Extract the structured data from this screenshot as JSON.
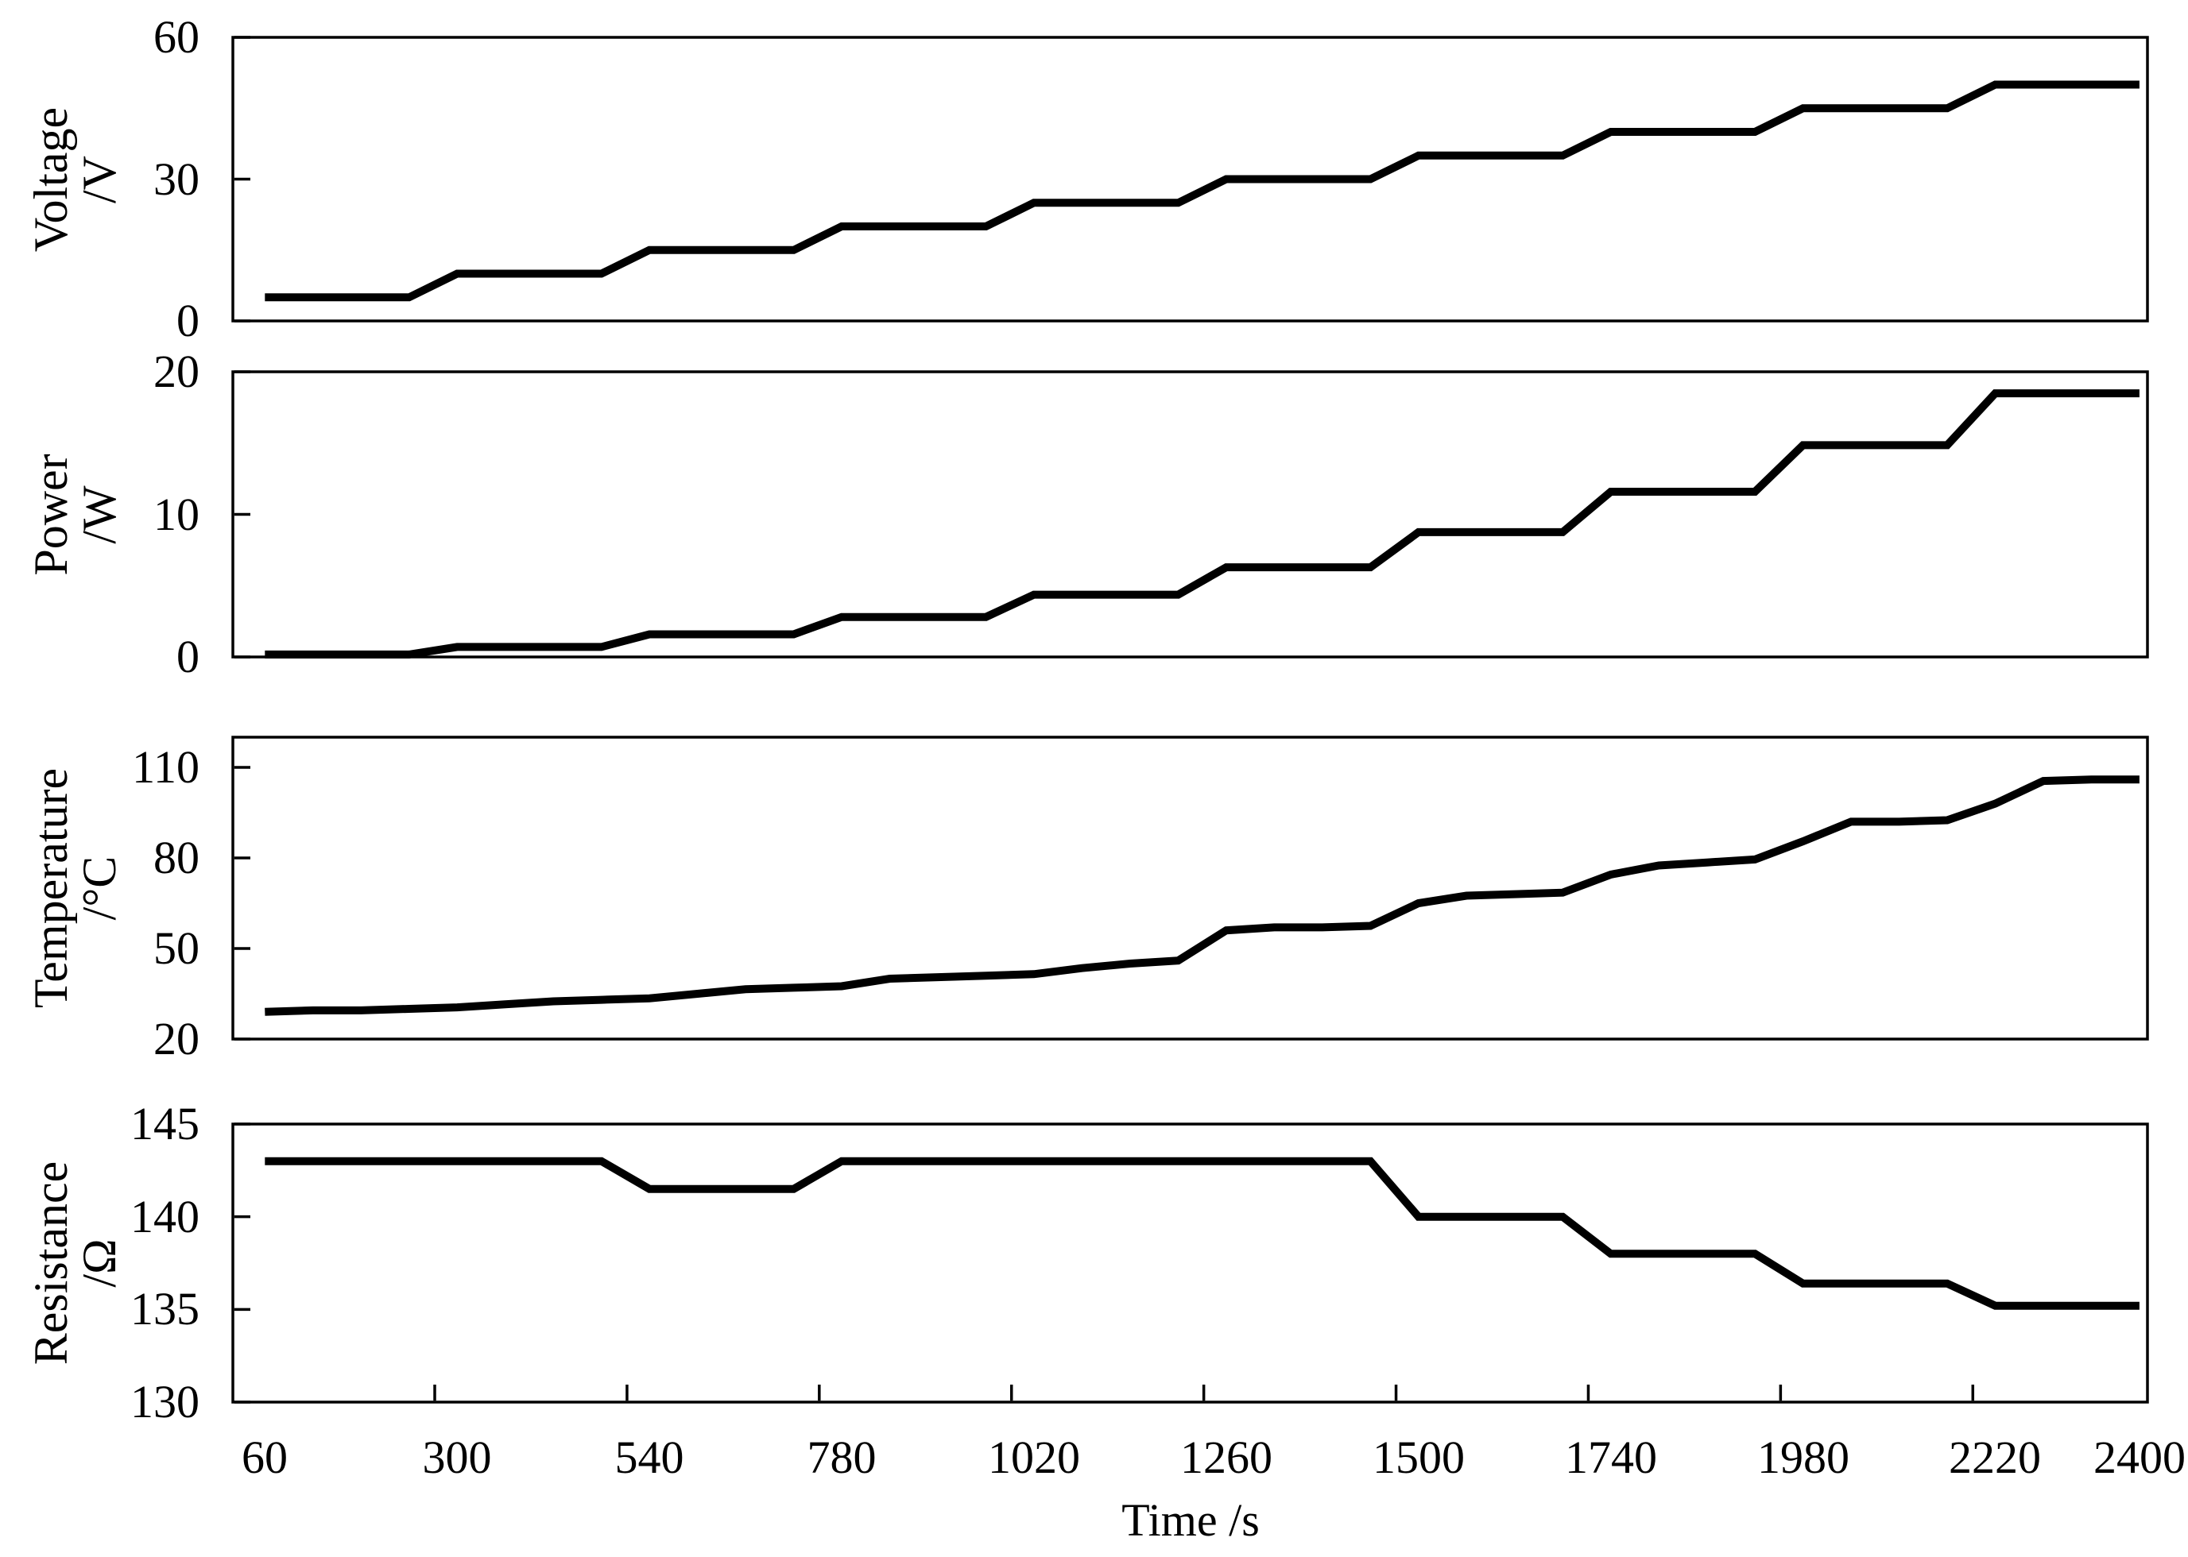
{
  "figure": {
    "background_color": "#ffffff",
    "line_color": "#000000",
    "x_axis_label": "Time /s"
  },
  "chart_data": {
    "type": "line",
    "title": "",
    "xlabel": "Time /s",
    "grid": false,
    "legend": null,
    "xlim": [
      20,
      2410
    ],
    "x": [
      60,
      120,
      180,
      240,
      300,
      360,
      420,
      480,
      540,
      600,
      660,
      720,
      780,
      840,
      900,
      960,
      1020,
      1080,
      1140,
      1200,
      1260,
      1320,
      1380,
      1440,
      1500,
      1560,
      1620,
      1680,
      1740,
      1800,
      1860,
      1920,
      1980,
      2040,
      2100,
      2160,
      2220,
      2280,
      2340,
      2400
    ],
    "x_tick_values": [
      60,
      300,
      540,
      780,
      1020,
      1260,
      1500,
      1740,
      1980,
      2220,
      2400
    ],
    "x_tick_labels": [
      "60",
      "300",
      "540",
      "780",
      "1020",
      "1260",
      "1500",
      "1740",
      "1980",
      "2220",
      "2400"
    ],
    "x_boundary_ticks": [
      272,
      512,
      752,
      992,
      1232,
      1472,
      1712,
      1952,
      2192
    ],
    "panels": [
      {
        "id": "voltage",
        "ylabel": "Voltage",
        "yunit": "/V",
        "ylim": [
          0,
          60
        ],
        "yticks": [
          0,
          30,
          60
        ],
        "ytick_labels": [
          "0",
          "30",
          "60"
        ],
        "values": [
          5,
          5,
          5,
          5,
          10,
          10,
          10,
          10,
          15,
          15,
          15,
          15,
          20,
          20,
          20,
          20,
          25,
          25,
          25,
          25,
          30,
          30,
          30,
          30,
          35,
          35,
          35,
          35,
          40,
          40,
          40,
          40,
          45,
          45,
          45,
          45,
          50,
          50,
          50,
          50
        ]
      },
      {
        "id": "power",
        "ylabel": "Power",
        "yunit": "/W",
        "ylim": [
          0,
          20
        ],
        "yticks": [
          0,
          10,
          20
        ],
        "ytick_labels": [
          "0",
          "10",
          "20"
        ],
        "values": [
          0.17,
          0.17,
          0.17,
          0.17,
          0.7,
          0.7,
          0.7,
          0.7,
          1.59,
          1.59,
          1.59,
          1.59,
          2.8,
          2.8,
          2.8,
          2.8,
          4.37,
          4.37,
          4.37,
          4.37,
          6.29,
          6.29,
          6.29,
          6.29,
          8.75,
          8.75,
          8.75,
          8.75,
          11.59,
          11.59,
          11.59,
          11.59,
          14.85,
          14.85,
          14.85,
          14.85,
          18.49,
          18.49,
          18.49,
          18.49
        ]
      },
      {
        "id": "temperature",
        "ylabel": "Temperature",
        "yunit": "/°C",
        "ylim": [
          20,
          120
        ],
        "yticks": [
          20,
          50,
          80,
          110
        ],
        "ytick_labels": [
          "20",
          "50",
          "80",
          "110"
        ],
        "values": [
          29,
          29.5,
          29.5,
          30,
          30.5,
          31.5,
          32.5,
          33,
          33.5,
          35,
          36.5,
          37,
          37.5,
          40,
          40.5,
          41,
          41.5,
          43.5,
          45,
          46,
          56,
          57,
          57,
          57.5,
          65,
          67.5,
          68,
          68.5,
          74.5,
          77.5,
          78.5,
          79.5,
          85.5,
          92,
          92,
          92.5,
          98,
          105.5,
          106,
          106
        ]
      },
      {
        "id": "resistance",
        "ylabel": "Resistance",
        "yunit": "/Ω",
        "ylim": [
          130,
          145
        ],
        "yticks": [
          130,
          135,
          140,
          145
        ],
        "ytick_labels": [
          "130",
          "135",
          "140",
          "145"
        ],
        "values": [
          143,
          143,
          143,
          143,
          143,
          143,
          143,
          143,
          141.5,
          141.5,
          141.5,
          141.5,
          143,
          143,
          143,
          143,
          143,
          143,
          143,
          143,
          143,
          143,
          143,
          143,
          140,
          140,
          140,
          140,
          138,
          138,
          138,
          138,
          136.4,
          136.4,
          136.4,
          136.4,
          135.2,
          135.2,
          135.2,
          135.2
        ]
      }
    ]
  }
}
